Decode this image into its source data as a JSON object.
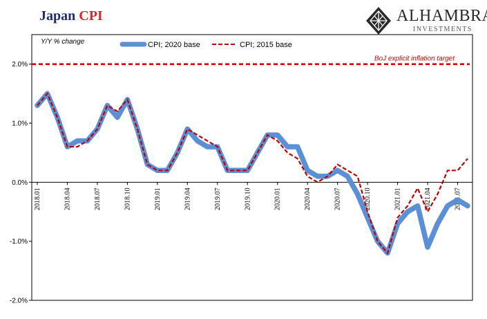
{
  "title": {
    "main": "Japan",
    "accent": "CPI"
  },
  "logo": {
    "brand": "ALHAMBRA",
    "sub": "INVESTMENTS",
    "icon": "diamond-lattice-icon"
  },
  "colors": {
    "cpi2020": "#5b8fd6",
    "cpi2015": "#c00000",
    "target": "#e00000",
    "title": "#1f2d6b",
    "accent": "#d7262c"
  },
  "chart_data": {
    "type": "line",
    "ylabel": "Y/Y % change",
    "ylim": [
      -2.0,
      2.5
    ],
    "yticks": [
      2.0,
      1.0,
      0.0,
      -1.0,
      -2.0
    ],
    "ytick_labels": [
      "2.0%",
      "1.0%",
      "0.0%",
      "-1.0%",
      "-2.0%"
    ],
    "grid": false,
    "legend": {
      "placement": "top-center"
    },
    "x_tick_labels": [
      {
        "index": 0,
        "label": "2018.01"
      },
      {
        "index": 3,
        "label": "2018.04"
      },
      {
        "index": 6,
        "label": "2018.07"
      },
      {
        "index": 9,
        "label": "2018.10"
      },
      {
        "index": 12,
        "label": "2019.01"
      },
      {
        "index": 15,
        "label": "2019.04"
      },
      {
        "index": 18,
        "label": "2019.07"
      },
      {
        "index": 21,
        "label": "2019.10"
      },
      {
        "index": 24,
        "label": "2020.01"
      },
      {
        "index": 27,
        "label": "2020.04"
      },
      {
        "index": 30,
        "label": "2020.07"
      },
      {
        "index": 33,
        "label": "2020.10"
      },
      {
        "index": 36,
        "label": "2021.01"
      },
      {
        "index": 39,
        "label": "2021.04"
      },
      {
        "index": 42,
        "label": "2021.07"
      }
    ],
    "series": [
      {
        "name": "CPI; 2020 base",
        "style": "solid",
        "values": [
          1.3,
          1.5,
          1.1,
          0.6,
          0.7,
          0.7,
          0.9,
          1.3,
          1.1,
          1.4,
          0.9,
          0.3,
          0.2,
          0.2,
          0.5,
          0.9,
          0.7,
          0.6,
          0.6,
          0.2,
          0.2,
          0.2,
          0.5,
          0.8,
          0.8,
          0.6,
          0.6,
          0.2,
          0.1,
          0.1,
          0.2,
          0.1,
          -0.2,
          -0.6,
          -1.0,
          -1.2,
          -0.7,
          -0.5,
          -0.4,
          -1.1,
          -0.7,
          -0.4,
          -0.3,
          -0.4
        ]
      },
      {
        "name": "CPI; 2015 base",
        "style": "dashed",
        "values": [
          1.3,
          1.5,
          1.1,
          0.6,
          0.6,
          0.7,
          0.9,
          1.3,
          1.2,
          1.4,
          0.9,
          0.3,
          0.2,
          0.2,
          0.5,
          0.9,
          0.8,
          0.7,
          0.6,
          0.2,
          0.2,
          0.2,
          0.5,
          0.8,
          0.7,
          0.5,
          0.4,
          0.1,
          0.0,
          0.1,
          0.3,
          0.2,
          0.1,
          -0.5,
          -1.0,
          -1.2,
          -0.6,
          -0.4,
          -0.1,
          -0.5,
          -0.2,
          0.2,
          0.2,
          0.4
        ]
      }
    ],
    "annotations": [
      {
        "type": "hline",
        "y": 2.0,
        "label": "BoJ explicit inflation target",
        "style": "dashed"
      }
    ]
  }
}
